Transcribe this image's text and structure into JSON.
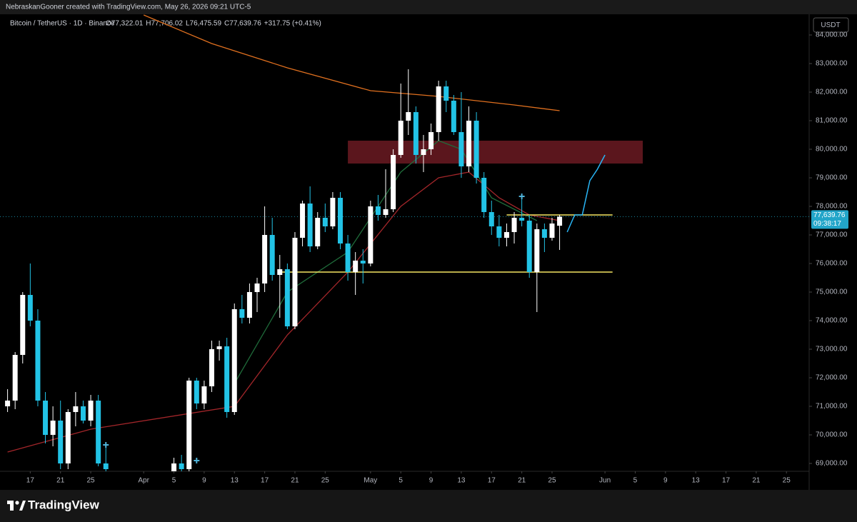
{
  "header": {
    "attribution": "NebraskanGooner created with TradingView.com, May 26, 2026 09:21 UTC-5",
    "symbol": "Bitcoin / TetherUS · 1D · Binance",
    "ohlc_labels": [
      "O77,322.01",
      "H77,706.02",
      "L76,475.59",
      "C77,639.76"
    ],
    "change": "+317.75 (+0.41%)"
  },
  "footer": {
    "brand": "TradingView"
  },
  "chart_data": {
    "type": "candlestick",
    "currency": "USDT",
    "up_color": "#ffffff",
    "down_color": "#22c3e6",
    "x": [
      "2026-03-14",
      "2026-03-15",
      "2026-03-16",
      "2026-03-17",
      "2026-03-18",
      "2026-03-19",
      "2026-03-20",
      "2026-03-21",
      "2026-03-22",
      "2026-03-23",
      "2026-03-24",
      "2026-03-25",
      "2026-03-26",
      "2026-03-27",
      "2026-04-05",
      "2026-04-06",
      "2026-04-07",
      "2026-04-08",
      "2026-04-09",
      "2026-04-10",
      "2026-04-11",
      "2026-04-12",
      "2026-04-13",
      "2026-04-14",
      "2026-04-15",
      "2026-04-16",
      "2026-04-17",
      "2026-04-18",
      "2026-04-19",
      "2026-04-20",
      "2026-04-21",
      "2026-04-22",
      "2026-04-23",
      "2026-04-24",
      "2026-04-25",
      "2026-04-26",
      "2026-04-27",
      "2026-04-28",
      "2026-04-29",
      "2026-04-30",
      "2026-05-01",
      "2026-05-02",
      "2026-05-03",
      "2026-05-04",
      "2026-05-05",
      "2026-05-06",
      "2026-05-07",
      "2026-05-08",
      "2026-05-09",
      "2026-05-10",
      "2026-05-11",
      "2026-05-12",
      "2026-05-13",
      "2026-05-14",
      "2026-05-15",
      "2026-05-16",
      "2026-05-17",
      "2026-05-18",
      "2026-05-19",
      "2026-05-20",
      "2026-05-21",
      "2026-05-22",
      "2026-05-23",
      "2026-05-24",
      "2026-05-25",
      "2026-05-26"
    ],
    "open": [
      71000,
      71200,
      72800,
      74900,
      74000,
      71200,
      70000,
      70500,
      69000,
      70800,
      71000,
      70500,
      71200,
      69000,
      68500,
      69000,
      68800,
      71900,
      71100,
      71700,
      73000,
      73100,
      70800,
      74400,
      74100,
      75000,
      75300,
      77000,
      75600,
      75800,
      73800,
      76900,
      78100,
      76600,
      77600,
      77300,
      78300,
      76700,
      75700,
      76100,
      76000,
      78000,
      77700,
      77900,
      79800,
      81000,
      81300,
      79800,
      80000,
      80600,
      82200,
      81700,
      80600,
      79400,
      81000,
      79000,
      77800,
      77300,
      76900,
      77100,
      77600,
      77500,
      75700,
      77200,
      76900,
      77322.01
    ],
    "high": [
      71600,
      72900,
      75000,
      76000,
      74400,
      71500,
      71000,
      71200,
      70900,
      71500,
      71200,
      71400,
      71400,
      69700,
      69200,
      69300,
      72000,
      72000,
      71900,
      73300,
      73300,
      73400,
      74600,
      74900,
      75300,
      75500,
      78000,
      77600,
      76300,
      76000,
      77100,
      78200,
      78700,
      77800,
      78100,
      78500,
      78500,
      77000,
      76400,
      76500,
      78200,
      78400,
      79300,
      80000,
      82300,
      82800,
      81500,
      80500,
      80900,
      82400,
      82400,
      81900,
      82000,
      81500,
      81300,
      79200,
      78200,
      77700,
      77400,
      77800,
      78300,
      77700,
      77400,
      77400,
      77600,
      77706.02
    ],
    "low": [
      70800,
      70900,
      72500,
      73800,
      71000,
      69700,
      69600,
      68800,
      68800,
      70300,
      70400,
      70300,
      68900,
      68700,
      68300,
      68700,
      68700,
      70900,
      70900,
      71500,
      72600,
      70600,
      70700,
      73900,
      73900,
      74300,
      75000,
      75400,
      74100,
      73700,
      73700,
      76600,
      76400,
      76500,
      77100,
      77200,
      76500,
      75400,
      74900,
      75300,
      75900,
      77500,
      77600,
      77800,
      79700,
      80500,
      79500,
      79200,
      79800,
      80300,
      81300,
      80500,
      79000,
      79200,
      78800,
      77600,
      77000,
      76600,
      76600,
      76700,
      77300,
      75500,
      74300,
      76400,
      76800,
      76475.59
    ],
    "close": [
      71200,
      72800,
      74900,
      74000,
      71200,
      70000,
      70500,
      69000,
      70800,
      71000,
      70500,
      71200,
      69000,
      68800,
      69000,
      68800,
      71900,
      71100,
      71700,
      73000,
      73100,
      70800,
      74400,
      74100,
      75000,
      75300,
      77000,
      75600,
      75800,
      73800,
      76900,
      78100,
      76600,
      77600,
      77300,
      78300,
      76700,
      75700,
      76100,
      76000,
      78000,
      77700,
      77900,
      79800,
      81000,
      81300,
      79800,
      80000,
      80600,
      82200,
      81700,
      80600,
      79400,
      81000,
      79000,
      77800,
      77300,
      76900,
      77100,
      77600,
      77500,
      75700,
      77200,
      76900,
      77400,
      77639.76
    ],
    "overlays": [
      {
        "color": "#e0701f",
        "x": [
          "2026-04-01",
          "2026-04-10",
          "2026-04-20",
          "2026-05-01",
          "2026-05-10",
          "2026-05-20",
          "2026-05-26"
        ],
        "values": [
          84700,
          83700,
          82850,
          82050,
          81850,
          81550,
          81350
        ]
      },
      {
        "color": "#a3262a",
        "x": [
          "2026-03-14",
          "2026-03-25",
          "2026-04-13",
          "2026-04-20",
          "2026-04-28",
          "2026-05-05",
          "2026-05-10",
          "2026-05-14",
          "2026-05-18",
          "2026-05-22",
          "2026-05-26"
        ],
        "values": [
          69400,
          70200,
          71000,
          73500,
          75700,
          78000,
          79000,
          79200,
          78300,
          77700,
          77500
        ]
      },
      {
        "color": "#1f6b3a",
        "x": [
          "2026-04-13",
          "2026-04-20",
          "2026-04-28",
          "2026-05-05",
          "2026-05-10",
          "2026-05-13",
          "2026-05-17",
          "2026-05-20",
          "2026-05-23"
        ],
        "values": [
          71800,
          75000,
          76400,
          79200,
          80300,
          80000,
          78300,
          77900,
          77500
        ]
      }
    ],
    "zones": [
      {
        "color": "#6b1a22",
        "x": [
          "2026-04-28",
          "2026-06-06"
        ],
        "y": [
          79500,
          80300
        ]
      }
    ],
    "levels": [
      {
        "color": "#f5e663",
        "x": [
          "2026-04-19",
          "2026-06-02"
        ],
        "value": 75700
      },
      {
        "color": "#f5e663",
        "x": [
          "2026-05-19",
          "2026-06-02"
        ],
        "value": 77700
      }
    ],
    "projection": {
      "color": "#29b6f6",
      "x": [
        "2026-05-27",
        "2026-05-28",
        "2026-05-29",
        "2026-05-30",
        "2026-05-31",
        "2026-06-01"
      ],
      "values": [
        77100,
        77700,
        77700,
        78900,
        79300,
        79800
      ]
    },
    "markers": {
      "color": "#4fb3d9",
      "x": [
        "2026-03-27",
        "2026-04-08",
        "2026-05-21"
      ],
      "values": [
        69650,
        69100,
        78350
      ]
    },
    "last_price_label": "77,639.76",
    "countdown": "09:38:17",
    "xlim": [
      "2026-03-13",
      "2026-06-28"
    ],
    "xticks": [
      {
        "value": "2026-03-17",
        "label": "17"
      },
      {
        "value": "2026-03-21",
        "label": "21"
      },
      {
        "value": "2026-03-25",
        "label": "25"
      },
      {
        "value": "2026-04-01",
        "label": "Apr"
      },
      {
        "value": "2026-04-05",
        "label": "5"
      },
      {
        "value": "2026-04-09",
        "label": "9"
      },
      {
        "value": "2026-04-13",
        "label": "13"
      },
      {
        "value": "2026-04-17",
        "label": "17"
      },
      {
        "value": "2026-04-21",
        "label": "21"
      },
      {
        "value": "2026-04-25",
        "label": "25"
      },
      {
        "value": "2026-05-01",
        "label": "May"
      },
      {
        "value": "2026-05-05",
        "label": "5"
      },
      {
        "value": "2026-05-09",
        "label": "9"
      },
      {
        "value": "2026-05-13",
        "label": "13"
      },
      {
        "value": "2026-05-17",
        "label": "17"
      },
      {
        "value": "2026-05-21",
        "label": "21"
      },
      {
        "value": "2026-05-25",
        "label": "25"
      },
      {
        "value": "2026-06-01",
        "label": "Jun"
      },
      {
        "value": "2026-06-05",
        "label": "5"
      },
      {
        "value": "2026-06-09",
        "label": "9"
      },
      {
        "value": "2026-06-13",
        "label": "13"
      },
      {
        "value": "2026-06-17",
        "label": "17"
      },
      {
        "value": "2026-06-21",
        "label": "21"
      },
      {
        "value": "2026-06-25",
        "label": "25"
      }
    ],
    "ylim": [
      68725,
      84725
    ],
    "yticks": [
      {
        "value": 69000,
        "label": "69,000.00"
      },
      {
        "value": 70000,
        "label": "70,000.00"
      },
      {
        "value": 71000,
        "label": "71,000.00"
      },
      {
        "value": 72000,
        "label": "72,000.00"
      },
      {
        "value": 73000,
        "label": "73,000.00"
      },
      {
        "value": 74000,
        "label": "74,000.00"
      },
      {
        "value": 75000,
        "label": "75,000.00"
      },
      {
        "value": 76000,
        "label": "76,000.00"
      },
      {
        "value": 77000,
        "label": "77,000.00"
      },
      {
        "value": 78000,
        "label": "78,000.00"
      },
      {
        "value": 79000,
        "label": "79,000.00"
      },
      {
        "value": 80000,
        "label": "80,000.00"
      },
      {
        "value": 81000,
        "label": "81,000.00"
      },
      {
        "value": 82000,
        "label": "82,000.00"
      },
      {
        "value": 83000,
        "label": "83,000.00"
      },
      {
        "value": 84000,
        "label": "84,000.00"
      }
    ],
    "grid": false
  }
}
